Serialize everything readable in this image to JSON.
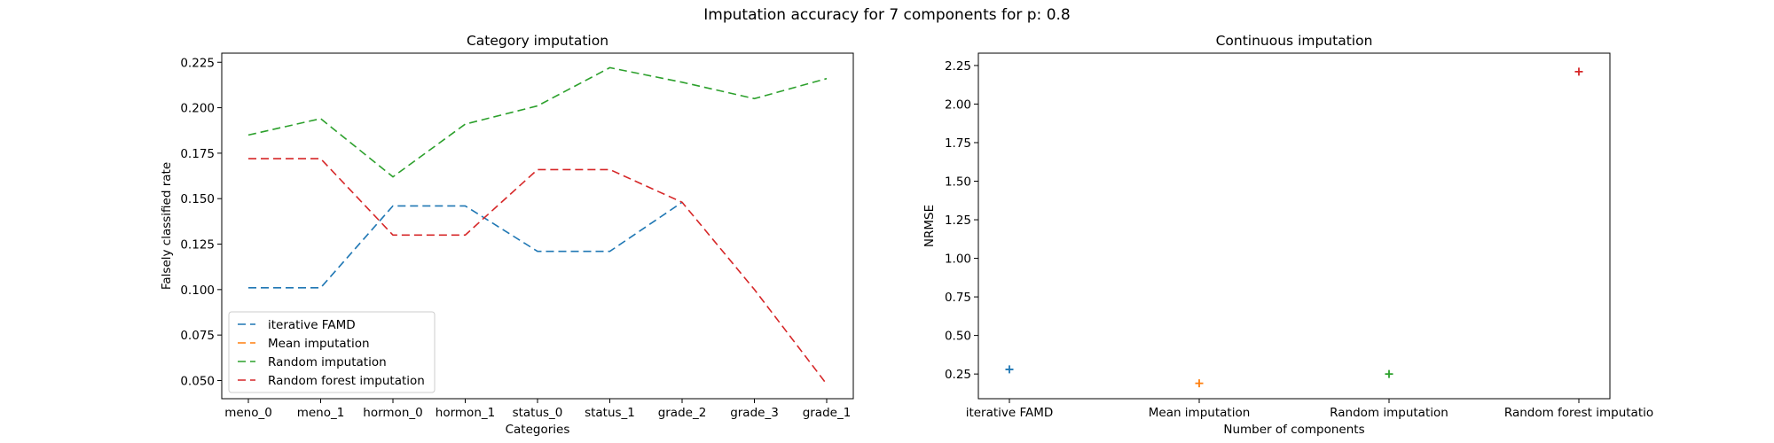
{
  "figure": {
    "suptitle": "Imputation accuracy for 7 components for p: 0.8"
  },
  "chart_data": [
    {
      "type": "line",
      "title": "Category imputation",
      "xlabel": "Categories",
      "ylabel": "Falsely classified rate",
      "categories": [
        "meno_0",
        "meno_1",
        "hormon_0",
        "hormon_1",
        "status_0",
        "status_1",
        "grade_2",
        "grade_3",
        "grade_1"
      ],
      "ylim": [
        0.04,
        0.23
      ],
      "yticks": [
        "0.050",
        "0.075",
        "0.100",
        "0.125",
        "0.150",
        "0.175",
        "0.200",
        "0.225"
      ],
      "line_style": "dashed",
      "grid": false,
      "legend_position": "lower-left",
      "series": [
        {
          "name": "iterative FAMD",
          "color": "#1f77b4",
          "values": [
            0.101,
            0.101,
            0.146,
            0.146,
            0.121,
            0.121,
            0.148,
            null,
            null
          ]
        },
        {
          "name": "Mean imputation",
          "color": "#ff7f0e",
          "values": [
            null,
            null,
            null,
            null,
            null,
            null,
            null,
            null,
            null
          ]
        },
        {
          "name": "Random imputation",
          "color": "#2ca02c",
          "values": [
            0.185,
            0.194,
            0.162,
            0.191,
            0.201,
            0.222,
            0.214,
            0.205,
            0.216
          ]
        },
        {
          "name": "Random forest imputation",
          "color": "#d62728",
          "values": [
            0.172,
            0.172,
            0.13,
            0.13,
            0.166,
            0.166,
            0.148,
            0.1,
            0.048
          ]
        }
      ]
    },
    {
      "type": "scatter",
      "title": "Continuous imputation",
      "xlabel": "Number of components",
      "ylabel": "NRMSE",
      "categories": [
        "iterative FAMD",
        "Mean imputation",
        "Random imputation",
        "Random forest imputatio"
      ],
      "ylim": [
        0.09,
        2.33
      ],
      "yticks": [
        "0.25",
        "0.50",
        "0.75",
        "1.00",
        "1.25",
        "1.50",
        "1.75",
        "2.00",
        "2.25"
      ],
      "marker": "+",
      "grid": false,
      "series": [
        {
          "name": "iterative FAMD",
          "color": "#1f77b4",
          "values": [
            0.28
          ]
        },
        {
          "name": "Mean imputation",
          "color": "#ff7f0e",
          "values": [
            0.19
          ]
        },
        {
          "name": "Random imputation",
          "color": "#2ca02c",
          "values": [
            0.25
          ]
        },
        {
          "name": "Random forest imputation",
          "color": "#d62728",
          "values": [
            2.21
          ]
        }
      ]
    }
  ]
}
